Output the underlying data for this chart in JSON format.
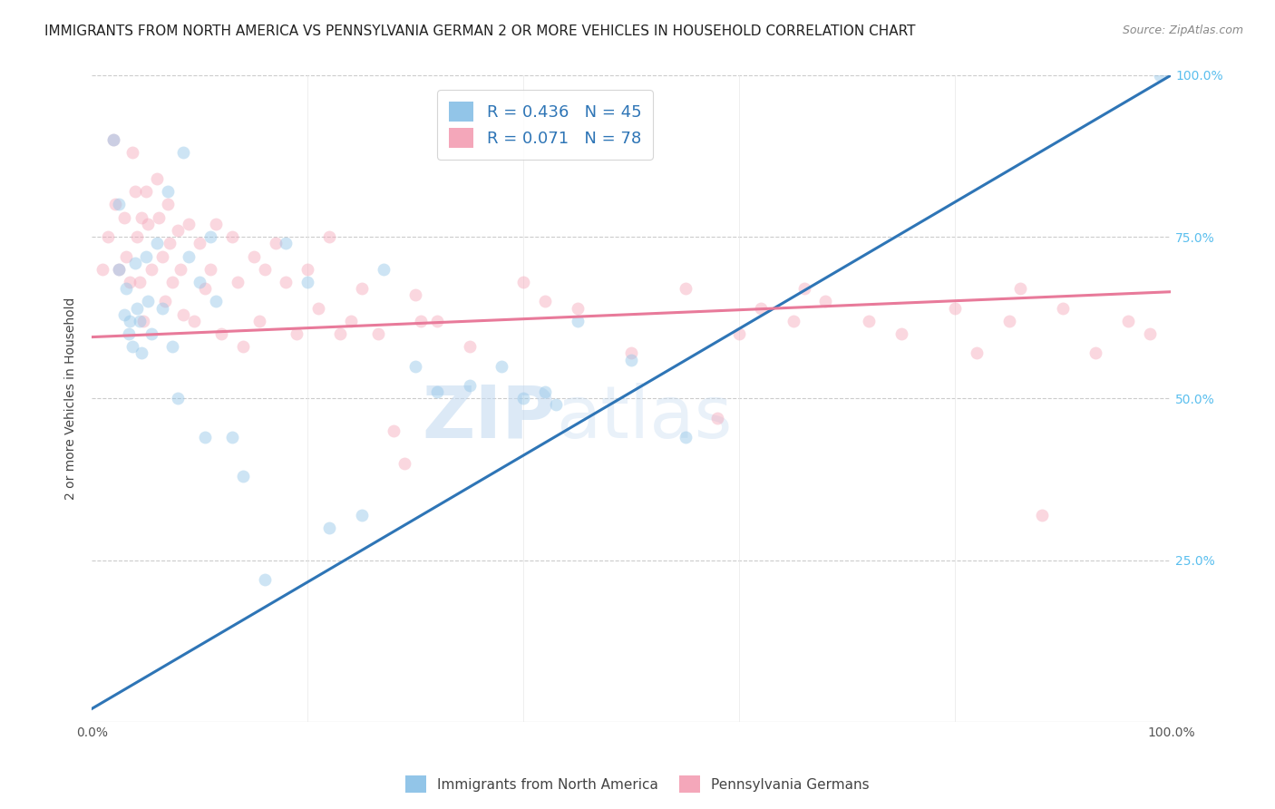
{
  "title": "IMMIGRANTS FROM NORTH AMERICA VS PENNSYLVANIA GERMAN 2 OR MORE VEHICLES IN HOUSEHOLD CORRELATION CHART",
  "source": "Source: ZipAtlas.com",
  "ylabel": "2 or more Vehicles in Household",
  "xlim": [
    0.0,
    1.0
  ],
  "ylim": [
    0.0,
    1.0
  ],
  "blue_R": 0.436,
  "blue_N": 45,
  "pink_R": 0.071,
  "pink_N": 78,
  "blue_color": "#92C5E8",
  "pink_color": "#F4A7BA",
  "blue_line_color": "#2E75B6",
  "pink_line_color": "#E87A9A",
  "legend_text_color": "#2E75B6",
  "right_tick_color": "#5BBFEE",
  "background_color": "#ffffff",
  "grid_color": "#cccccc",
  "title_fontsize": 11,
  "label_fontsize": 10,
  "tick_fontsize": 10,
  "marker_size": 100,
  "marker_alpha": 0.45,
  "line_width": 2.2,
  "blue_line_x0": 0.0,
  "blue_line_y0": 0.02,
  "blue_line_x1": 1.0,
  "blue_line_y1": 1.0,
  "pink_line_x0": 0.0,
  "pink_line_y0": 0.595,
  "pink_line_x1": 1.0,
  "pink_line_y1": 0.665,
  "blue_scatter_x": [
    0.02,
    0.025,
    0.025,
    0.03,
    0.032,
    0.034,
    0.035,
    0.038,
    0.04,
    0.042,
    0.044,
    0.046,
    0.05,
    0.052,
    0.055,
    0.06,
    0.065,
    0.07,
    0.075,
    0.08,
    0.085,
    0.09,
    0.1,
    0.105,
    0.11,
    0.115,
    0.13,
    0.14,
    0.16,
    0.18,
    0.2,
    0.22,
    0.25,
    0.27,
    0.3,
    0.32,
    0.35,
    0.38,
    0.4,
    0.42,
    0.43,
    0.45,
    0.5,
    0.55,
    0.99
  ],
  "blue_scatter_y": [
    0.9,
    0.7,
    0.8,
    0.63,
    0.67,
    0.6,
    0.62,
    0.58,
    0.71,
    0.64,
    0.62,
    0.57,
    0.72,
    0.65,
    0.6,
    0.74,
    0.64,
    0.82,
    0.58,
    0.5,
    0.88,
    0.72,
    0.68,
    0.44,
    0.75,
    0.65,
    0.44,
    0.38,
    0.22,
    0.74,
    0.68,
    0.3,
    0.32,
    0.7,
    0.55,
    0.51,
    0.52,
    0.55,
    0.5,
    0.51,
    0.49,
    0.62,
    0.56,
    0.44,
    1.0
  ],
  "pink_scatter_x": [
    0.01,
    0.015,
    0.02,
    0.022,
    0.025,
    0.03,
    0.032,
    0.035,
    0.038,
    0.04,
    0.042,
    0.044,
    0.046,
    0.048,
    0.05,
    0.052,
    0.055,
    0.06,
    0.062,
    0.065,
    0.068,
    0.07,
    0.072,
    0.075,
    0.08,
    0.082,
    0.085,
    0.09,
    0.095,
    0.1,
    0.105,
    0.11,
    0.115,
    0.12,
    0.13,
    0.135,
    0.14,
    0.15,
    0.155,
    0.16,
    0.17,
    0.18,
    0.19,
    0.2,
    0.21,
    0.22,
    0.23,
    0.24,
    0.25,
    0.265,
    0.28,
    0.29,
    0.3,
    0.305,
    0.32,
    0.35,
    0.4,
    0.42,
    0.45,
    0.5,
    0.55,
    0.58,
    0.6,
    0.62,
    0.65,
    0.66,
    0.68,
    0.72,
    0.75,
    0.8,
    0.82,
    0.85,
    0.86,
    0.88,
    0.9,
    0.93,
    0.96,
    0.98
  ],
  "pink_scatter_y": [
    0.7,
    0.75,
    0.9,
    0.8,
    0.7,
    0.78,
    0.72,
    0.68,
    0.88,
    0.82,
    0.75,
    0.68,
    0.78,
    0.62,
    0.82,
    0.77,
    0.7,
    0.84,
    0.78,
    0.72,
    0.65,
    0.8,
    0.74,
    0.68,
    0.76,
    0.7,
    0.63,
    0.77,
    0.62,
    0.74,
    0.67,
    0.7,
    0.77,
    0.6,
    0.75,
    0.68,
    0.58,
    0.72,
    0.62,
    0.7,
    0.74,
    0.68,
    0.6,
    0.7,
    0.64,
    0.75,
    0.6,
    0.62,
    0.67,
    0.6,
    0.45,
    0.4,
    0.66,
    0.62,
    0.62,
    0.58,
    0.68,
    0.65,
    0.64,
    0.57,
    0.67,
    0.47,
    0.6,
    0.64,
    0.62,
    0.67,
    0.65,
    0.62,
    0.6,
    0.64,
    0.57,
    0.62,
    0.67,
    0.32,
    0.64,
    0.57,
    0.62,
    0.6
  ]
}
